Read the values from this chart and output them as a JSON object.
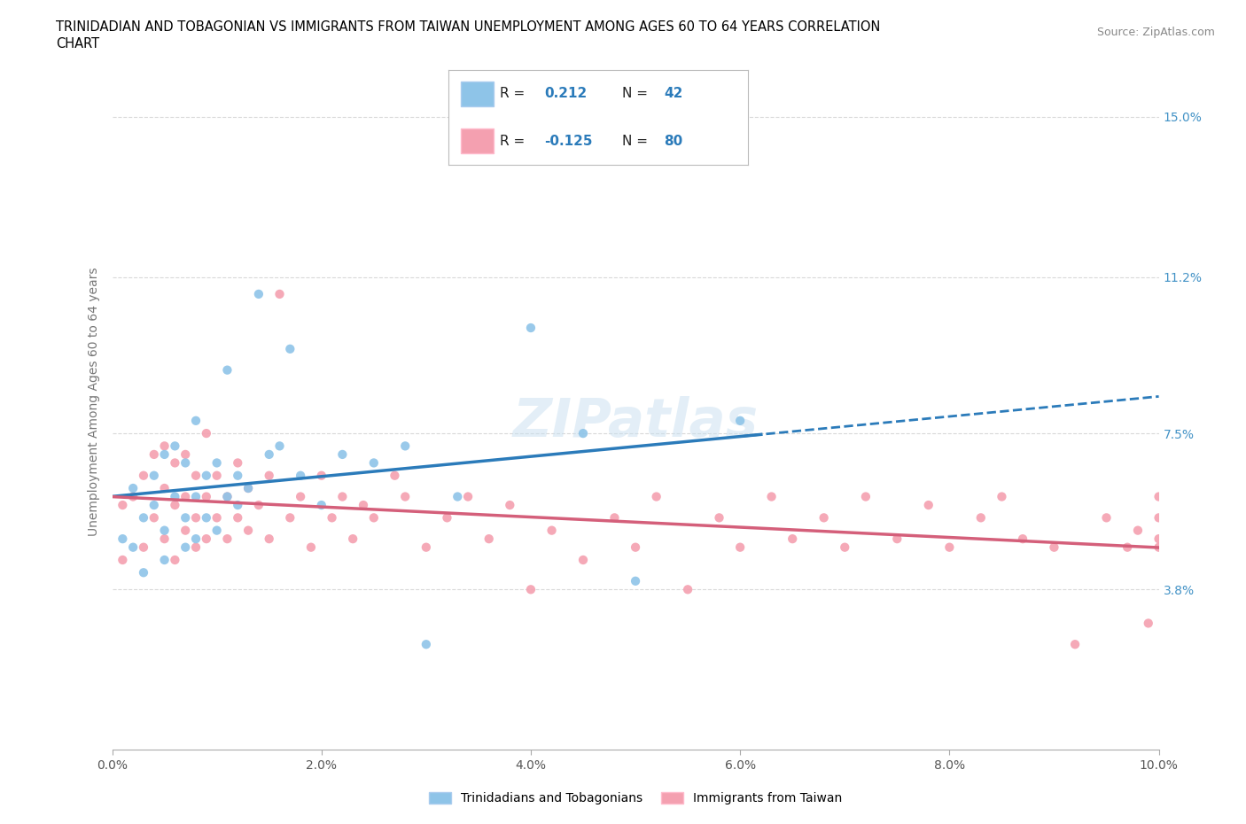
{
  "title_line1": "TRINIDADIAN AND TOBAGONIAN VS IMMIGRANTS FROM TAIWAN UNEMPLOYMENT AMONG AGES 60 TO 64 YEARS CORRELATION",
  "title_line2": "CHART",
  "source_text": "Source: ZipAtlas.com",
  "ylabel": "Unemployment Among Ages 60 to 64 years",
  "xlim": [
    0.0,
    0.1
  ],
  "ylim": [
    0.0,
    0.165
  ],
  "xtick_labels": [
    "0.0%",
    "",
    "2.0%",
    "",
    "4.0%",
    "",
    "6.0%",
    "",
    "8.0%",
    "",
    "10.0%"
  ],
  "xtick_values": [
    0.0,
    0.01,
    0.02,
    0.03,
    0.04,
    0.05,
    0.06,
    0.07,
    0.08,
    0.09,
    0.1
  ],
  "ytick_labels": [
    "3.8%",
    "7.5%",
    "11.2%",
    "15.0%"
  ],
  "ytick_values": [
    0.038,
    0.075,
    0.112,
    0.15
  ],
  "blue_color": "#8ec4e8",
  "pink_color": "#f4a0b0",
  "line_blue": "#2b7bba",
  "line_pink": "#d45f7a",
  "tick_color": "#4292c6",
  "R_blue": 0.212,
  "N_blue": 42,
  "R_pink": -0.125,
  "N_pink": 80,
  "legend_label_blue": "Trinidadians and Tobagonians",
  "legend_label_pink": "Immigrants from Taiwan",
  "watermark": "ZIPatlas",
  "grid_color": "#d0d0d0",
  "blue_scatter_x": [
    0.001,
    0.002,
    0.002,
    0.003,
    0.003,
    0.004,
    0.004,
    0.005,
    0.005,
    0.005,
    0.006,
    0.006,
    0.007,
    0.007,
    0.007,
    0.008,
    0.008,
    0.008,
    0.009,
    0.009,
    0.01,
    0.01,
    0.011,
    0.011,
    0.012,
    0.012,
    0.013,
    0.014,
    0.015,
    0.016,
    0.017,
    0.018,
    0.02,
    0.022,
    0.025,
    0.028,
    0.03,
    0.033,
    0.04,
    0.045,
    0.05,
    0.06
  ],
  "blue_scatter_y": [
    0.05,
    0.048,
    0.062,
    0.055,
    0.042,
    0.058,
    0.065,
    0.045,
    0.052,
    0.07,
    0.06,
    0.072,
    0.048,
    0.055,
    0.068,
    0.05,
    0.06,
    0.078,
    0.055,
    0.065,
    0.052,
    0.068,
    0.06,
    0.09,
    0.058,
    0.065,
    0.062,
    0.108,
    0.07,
    0.072,
    0.095,
    0.065,
    0.058,
    0.07,
    0.068,
    0.072,
    0.025,
    0.06,
    0.1,
    0.075,
    0.04,
    0.078
  ],
  "pink_scatter_x": [
    0.001,
    0.001,
    0.002,
    0.003,
    0.003,
    0.004,
    0.004,
    0.005,
    0.005,
    0.005,
    0.006,
    0.006,
    0.006,
    0.007,
    0.007,
    0.007,
    0.008,
    0.008,
    0.008,
    0.009,
    0.009,
    0.009,
    0.01,
    0.01,
    0.011,
    0.011,
    0.012,
    0.012,
    0.013,
    0.013,
    0.014,
    0.015,
    0.015,
    0.016,
    0.017,
    0.018,
    0.019,
    0.02,
    0.021,
    0.022,
    0.023,
    0.024,
    0.025,
    0.027,
    0.028,
    0.03,
    0.032,
    0.034,
    0.036,
    0.038,
    0.04,
    0.042,
    0.045,
    0.048,
    0.05,
    0.052,
    0.055,
    0.058,
    0.06,
    0.063,
    0.065,
    0.068,
    0.07,
    0.072,
    0.075,
    0.078,
    0.08,
    0.083,
    0.085,
    0.087,
    0.09,
    0.092,
    0.095,
    0.097,
    0.098,
    0.099,
    0.1,
    0.1,
    0.1,
    0.1
  ],
  "pink_scatter_y": [
    0.045,
    0.058,
    0.06,
    0.048,
    0.065,
    0.055,
    0.07,
    0.05,
    0.062,
    0.072,
    0.045,
    0.058,
    0.068,
    0.052,
    0.06,
    0.07,
    0.048,
    0.055,
    0.065,
    0.05,
    0.06,
    0.075,
    0.055,
    0.065,
    0.05,
    0.06,
    0.055,
    0.068,
    0.052,
    0.062,
    0.058,
    0.05,
    0.065,
    0.108,
    0.055,
    0.06,
    0.048,
    0.065,
    0.055,
    0.06,
    0.05,
    0.058,
    0.055,
    0.065,
    0.06,
    0.048,
    0.055,
    0.06,
    0.05,
    0.058,
    0.038,
    0.052,
    0.045,
    0.055,
    0.048,
    0.06,
    0.038,
    0.055,
    0.048,
    0.06,
    0.05,
    0.055,
    0.048,
    0.06,
    0.05,
    0.058,
    0.048,
    0.055,
    0.06,
    0.05,
    0.048,
    0.025,
    0.055,
    0.048,
    0.052,
    0.03,
    0.06,
    0.05,
    0.055,
    0.048
  ]
}
